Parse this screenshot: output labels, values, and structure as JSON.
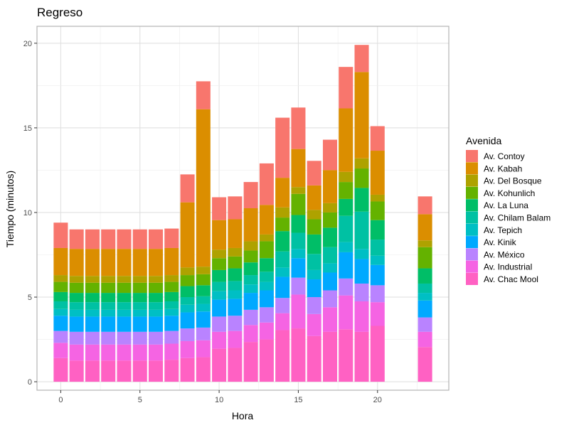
{
  "chart_data": {
    "type": "bar",
    "stacked": true,
    "title": "Regreso",
    "xlabel": "Hora",
    "ylabel": "Tiempo (minutos)",
    "xlim": [
      -1.5,
      24.5
    ],
    "ylim": [
      -0.5,
      21
    ],
    "x_ticks": [
      0,
      5,
      10,
      15,
      20
    ],
    "y_ticks": [
      0,
      5,
      10,
      15,
      20
    ],
    "grid": true,
    "legend_title": "Avenida",
    "legend_position": "right",
    "x": [
      0,
      1,
      2,
      3,
      4,
      5,
      6,
      7,
      8,
      9,
      10,
      11,
      12,
      13,
      14,
      15,
      16,
      17,
      18,
      19,
      20,
      23
    ],
    "series": [
      {
        "name": "Av. Chac Mool",
        "color": "#FF61C3",
        "values": [
          1.4,
          1.25,
          1.25,
          1.25,
          1.25,
          1.25,
          1.25,
          1.3,
          1.4,
          1.45,
          1.95,
          2.0,
          2.35,
          2.5,
          3.05,
          3.15,
          2.7,
          2.95,
          3.1,
          2.95,
          3.3,
          2.05
        ]
      },
      {
        "name": "Av. Industrial",
        "color": "#F564E3",
        "values": [
          0.9,
          0.95,
          0.95,
          0.95,
          0.95,
          0.95,
          0.95,
          0.95,
          1.0,
          1.0,
          1.0,
          1.0,
          1.0,
          1.0,
          1.0,
          2.0,
          1.3,
          1.45,
          2.0,
          1.8,
          1.4,
          0.9
        ]
      },
      {
        "name": "Av. México",
        "color": "#B983FF",
        "values": [
          0.7,
          0.75,
          0.75,
          0.75,
          0.75,
          0.75,
          0.75,
          0.75,
          0.75,
          0.75,
          0.9,
          0.9,
          0.9,
          0.9,
          0.9,
          1.0,
          1.0,
          1.0,
          1.0,
          1.05,
          1.0,
          0.85
        ]
      },
      {
        "name": "Av. Kinik",
        "color": "#00A9FF",
        "values": [
          0.9,
          0.9,
          0.9,
          0.9,
          0.9,
          0.9,
          0.9,
          0.9,
          0.95,
          0.95,
          1.0,
          1.0,
          1.0,
          1.0,
          1.25,
          1.15,
          1.05,
          1.05,
          1.55,
          1.45,
          1.2,
          1.0
        ]
      },
      {
        "name": "Av. Tepich",
        "color": "#00BFC4",
        "values": [
          0.4,
          0.4,
          0.4,
          0.4,
          0.4,
          0.4,
          0.4,
          0.4,
          0.45,
          0.45,
          0.5,
          0.5,
          0.5,
          0.5,
          0.55,
          0.55,
          0.55,
          0.55,
          0.6,
          0.6,
          0.55,
          0.45
        ]
      },
      {
        "name": "Av. Chilam Balam",
        "color": "#00C1A3",
        "values": [
          0.45,
          0.45,
          0.45,
          0.45,
          0.45,
          0.45,
          0.45,
          0.45,
          0.45,
          0.45,
          0.55,
          0.55,
          0.55,
          0.6,
          0.95,
          0.95,
          0.95,
          0.95,
          1.55,
          2.2,
          0.95,
          0.55
        ]
      },
      {
        "name": "Av. La Luna",
        "color": "#00BE67",
        "values": [
          0.55,
          0.55,
          0.55,
          0.55,
          0.55,
          0.55,
          0.55,
          0.55,
          0.65,
          0.65,
          0.7,
          0.75,
          0.75,
          0.8,
          1.2,
          1.05,
          1.15,
          1.15,
          1.0,
          1.4,
          1.15,
          0.9
        ]
      },
      {
        "name": "Av. Kohunlich",
        "color": "#64B200",
        "values": [
          0.6,
          0.6,
          0.6,
          0.6,
          0.6,
          0.6,
          0.6,
          0.6,
          0.65,
          0.65,
          0.7,
          0.7,
          0.7,
          1.0,
          0.8,
          1.25,
          0.9,
          0.9,
          1.0,
          1.15,
          1.1,
          1.25
        ]
      },
      {
        "name": "Av. Del Bosque",
        "color": "#AEA200",
        "values": [
          0.4,
          0.4,
          0.4,
          0.4,
          0.4,
          0.4,
          0.4,
          0.4,
          0.45,
          0.45,
          0.5,
          0.5,
          0.55,
          0.4,
          0.6,
          0.4,
          0.55,
          0.55,
          0.6,
          0.6,
          0.4,
          0.4
        ]
      },
      {
        "name": "Av. Kabah",
        "color": "#DB8E00",
        "values": [
          1.6,
          1.6,
          1.6,
          1.6,
          1.6,
          1.6,
          1.6,
          1.6,
          3.85,
          9.3,
          1.75,
          1.7,
          1.95,
          1.75,
          1.75,
          2.25,
          1.45,
          1.95,
          3.75,
          5.1,
          2.6,
          1.55
        ]
      },
      {
        "name": "Av. Contoy",
        "color": "#F8766D",
        "values": [
          1.5,
          1.15,
          1.15,
          1.15,
          1.15,
          1.15,
          1.15,
          1.15,
          1.65,
          1.65,
          1.35,
          1.35,
          1.55,
          2.45,
          3.55,
          2.45,
          1.45,
          1.8,
          2.45,
          1.6,
          1.45,
          1.05
        ]
      }
    ]
  }
}
